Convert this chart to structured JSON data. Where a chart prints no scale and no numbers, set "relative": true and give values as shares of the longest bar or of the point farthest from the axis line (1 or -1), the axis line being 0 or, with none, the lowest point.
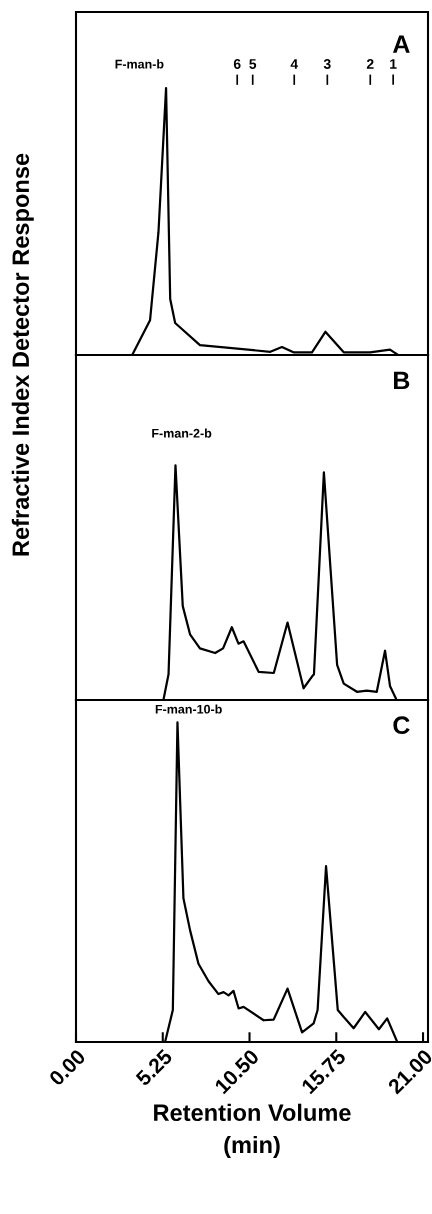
{
  "chart_data": [
    {
      "type": "line",
      "relative": true,
      "xlim": [
        0,
        21.3
      ],
      "tick_labels": false,
      "color": "#000000",
      "x": [
        3.4,
        4.48,
        4.99,
        5.45,
        5.7,
        6.0,
        7.5,
        11.76,
        12.46,
        13.16,
        14.28,
        15.09,
        16.2,
        17.8,
        19.0,
        19.5
      ],
      "values": [
        0,
        0.13,
        0.46,
        1.0,
        0.21,
        0.12,
        0.037,
        0.012,
        0.03,
        0.01,
        0.01,
        0.087,
        0.01,
        0.01,
        0.02,
        0
      ],
      "annotations": [
        "A",
        "F-man-b",
        "6",
        "5",
        "4",
        "3",
        "2",
        "1"
      ]
    },
    {
      "type": "line",
      "relative": true,
      "xlim": [
        0,
        21.3
      ],
      "tick_labels": false,
      "color": "#000000",
      "ylabel": "Refractive Index Detector Response",
      "x": [
        5.29,
        5.6,
        6.02,
        6.46,
        6.9,
        7.5,
        8.42,
        8.9,
        9.43,
        9.83,
        10.14,
        11.05,
        11.97,
        12.8,
        13.77,
        14.28,
        14.4,
        15.0,
        15.8,
        16.2,
        17.0,
        17.6,
        18.2,
        18.7,
        19.0,
        19.4
      ],
      "values": [
        0,
        0.11,
        1.0,
        0.4,
        0.28,
        0.22,
        0.2,
        0.22,
        0.31,
        0.24,
        0.25,
        0.12,
        0.115,
        0.33,
        0.05,
        0.1,
        0.11,
        0.97,
        0.15,
        0.07,
        0.035,
        0.04,
        0.035,
        0.21,
        0.06,
        0
      ],
      "annotations": [
        "B",
        "F-man-2-b"
      ]
    },
    {
      "type": "line",
      "relative": true,
      "xlim": [
        0,
        21.3
      ],
      "tick_labels": "x",
      "color": "#000000",
      "xlabel": "Retention Volume\n(min)",
      "xticks": [
        {
          "value": 0,
          "label": "0.00"
        },
        {
          "value": 5.25,
          "label": "5.25"
        },
        {
          "value": 10.5,
          "label": "10.50"
        },
        {
          "value": 15.75,
          "label": "15.75"
        },
        {
          "value": 21,
          "label": "21.00"
        }
      ],
      "x": [
        5.39,
        5.86,
        6.14,
        6.5,
        6.9,
        7.41,
        8.02,
        8.62,
        8.93,
        9.23,
        9.53,
        9.84,
        10.14,
        11.35,
        11.96,
        12.8,
        13.68,
        14.38,
        14.62,
        15.13,
        15.84,
        16.2,
        16.8,
        17.5,
        18.33,
        18.83,
        19.44
      ],
      "values": [
        0,
        0.1,
        1.0,
        0.45,
        0.35,
        0.245,
        0.19,
        0.15,
        0.156,
        0.146,
        0.16,
        0.105,
        0.11,
        0.068,
        0.07,
        0.167,
        0.03,
        0.058,
        0.1,
        0.55,
        0.1,
        0.078,
        0.043,
        0.094,
        0.04,
        0.074,
        0
      ],
      "annotations": [
        "C",
        "F-man-10-b"
      ]
    }
  ]
}
